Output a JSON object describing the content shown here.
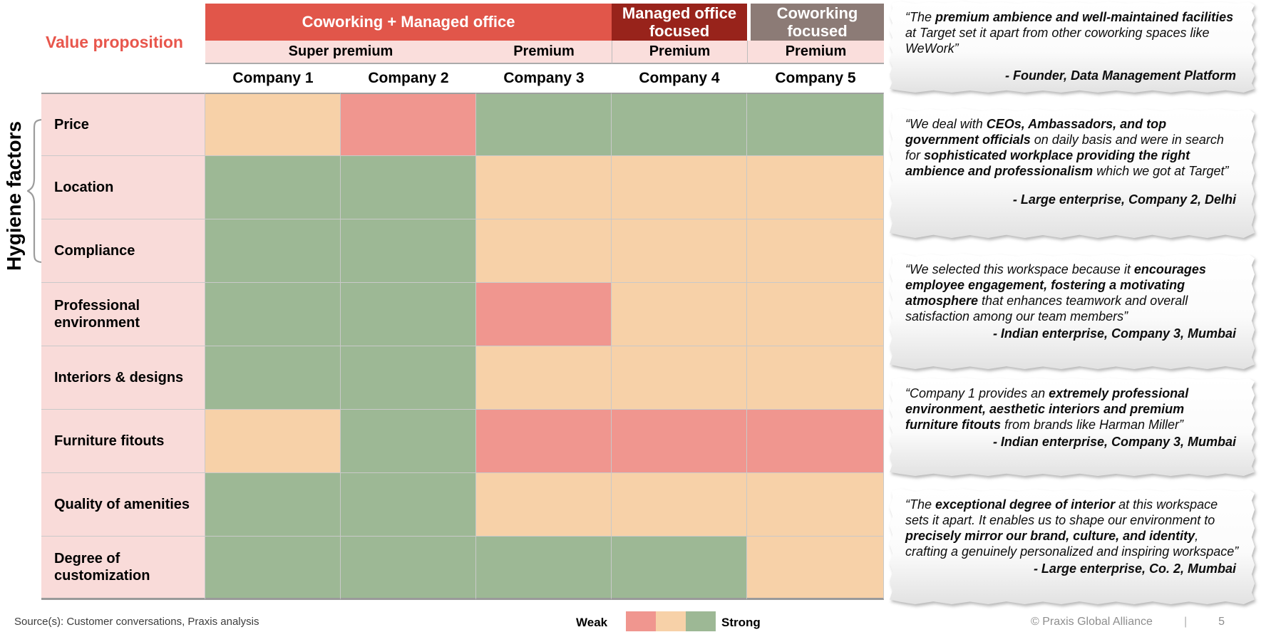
{
  "slide": {
    "value_proposition_label": "Value proposition",
    "hygiene_factors_label": "Hygiene factors"
  },
  "chart_data": {
    "type": "heatmap",
    "column_groups": [
      {
        "label": "Coworking + Managed office",
        "span": 3,
        "color": "#E1564A",
        "gap_before": false
      },
      {
        "label": "Managed office focused",
        "span": 1,
        "color": "#98231B",
        "gap_before": false
      },
      {
        "label": "Coworking focused",
        "span": 1,
        "color": "#8C7B76",
        "gap_before": true
      }
    ],
    "tier_row": [
      {
        "label": "Super premium",
        "span": 2,
        "group": 0
      },
      {
        "label": "Premium",
        "span": 1,
        "group": 0
      },
      {
        "label": "Premium",
        "span": 1,
        "group": 1
      },
      {
        "label": "Premium",
        "span": 1,
        "group": 2
      }
    ],
    "columns": [
      "Company 1",
      "Company 2",
      "Company 3",
      "Company 4",
      "Company 5"
    ],
    "rows": [
      "Price",
      "Location",
      "Compliance",
      "Professional environment",
      "Interiors & designs",
      "Furniture fitouts",
      "Quality of amenities",
      "Degree of customization"
    ],
    "ratings": [
      [
        "medium",
        "weak",
        "strong",
        "strong",
        "strong"
      ],
      [
        "strong",
        "strong",
        "medium",
        "medium",
        "medium"
      ],
      [
        "strong",
        "strong",
        "medium",
        "medium",
        "medium"
      ],
      [
        "strong",
        "strong",
        "weak",
        "medium",
        "medium"
      ],
      [
        "strong",
        "strong",
        "medium",
        "medium",
        "medium"
      ],
      [
        "medium",
        "strong",
        "weak",
        "weak",
        "weak"
      ],
      [
        "strong",
        "strong",
        "medium",
        "medium",
        "medium"
      ],
      [
        "strong",
        "strong",
        "strong",
        "strong",
        "medium"
      ]
    ],
    "scale": {
      "weak": "#F0968F",
      "medium": "#F7D1A8",
      "strong": "#9DB895"
    },
    "row_label_color": "#F9DBD9",
    "tier_color": "#FADEDC",
    "legend": {
      "left_label": "Weak",
      "right_label": "Strong",
      "order": [
        "weak",
        "medium",
        "strong"
      ],
      "position": "bottom-center"
    }
  },
  "quotes": [
    {
      "segments": [
        {
          "text": "“The ",
          "bold": false
        },
        {
          "text": "premium ambience and well-maintained facilities",
          "bold": true
        },
        {
          "text": " at Target set it apart from other coworking spaces like WeWork”",
          "bold": false
        }
      ],
      "attribution": "- Founder, Data Management Platform"
    },
    {
      "segments": [
        {
          "text": "“We deal with ",
          "bold": false
        },
        {
          "text": "CEOs, Ambassadors, and top government officials",
          "bold": true
        },
        {
          "text": " on daily basis and were in search for ",
          "bold": false
        },
        {
          "text": "sophisticated workplace providing the right ambience and professionalism",
          "bold": true
        },
        {
          "text": " which we got at Target”",
          "bold": false
        }
      ],
      "attribution": "- Large enterprise, Company 2, Delhi"
    },
    {
      "segments": [
        {
          "text": "“We selected this workspace because it ",
          "bold": false
        },
        {
          "text": "encourages employee engagement, fostering a motivating atmosphere",
          "bold": true
        },
        {
          "text": " that enhances teamwork and overall satisfaction among our team members”",
          "bold": false
        }
      ],
      "attribution": "- Indian enterprise, Company 3, Mumbai"
    },
    {
      "segments": [
        {
          "text": "“Company 1 provides an ",
          "bold": false
        },
        {
          "text": "extremely professional environment, aesthetic interiors and premium furniture fitouts",
          "bold": true
        },
        {
          "text": " from brands like Harman Miller”",
          "bold": false
        }
      ],
      "attribution": "- Indian enterprise, Company 3, Mumbai"
    },
    {
      "segments": [
        {
          "text": "“The ",
          "bold": false
        },
        {
          "text": "exceptional degree of interior",
          "bold": true
        },
        {
          "text": " at this workspace sets it apart. It enables us to shape our environment to ",
          "bold": false
        },
        {
          "text": "precisely mirror our brand, culture, and identity",
          "bold": true
        },
        {
          "text": ", crafting a genuinely personalized and inspiring workspace”",
          "bold": false
        }
      ],
      "attribution": "- Large enterprise, Co. 2, Mumbai"
    }
  ],
  "footer": {
    "source": "Source(s): Customer conversations, Praxis analysis",
    "copyright": "© Praxis Global Alliance",
    "separator": "|",
    "page_number": "5"
  }
}
